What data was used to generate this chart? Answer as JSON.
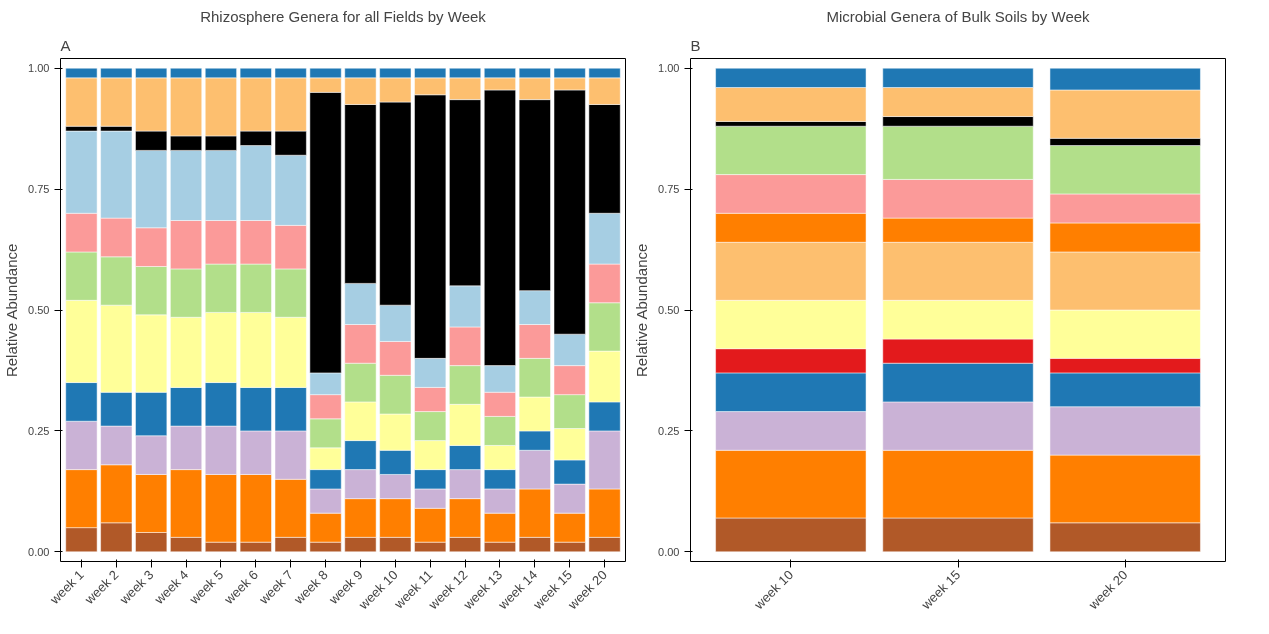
{
  "chart_data": [
    {
      "type": "bar",
      "stacked": true,
      "title": "Rhizosphere Genera for all Fields by Week",
      "ylabel": "Relative Abundance",
      "annotations": [
        "A"
      ],
      "categories": [
        "week 1",
        "week 2",
        "week 3",
        "week 4",
        "week 5",
        "week 6",
        "week 7",
        "week 8",
        "week 9",
        "week 10",
        "week 11",
        "week 12",
        "week 13",
        "week 14",
        "week 15",
        "week 20"
      ],
      "series": [
        {
          "color": "#b15928",
          "values": [
            0.05,
            0.06,
            0.04,
            0.03,
            0.02,
            0.02,
            0.03,
            0.02,
            0.03,
            0.03,
            0.02,
            0.03,
            0.02,
            0.03,
            0.02,
            0.03
          ]
        },
        {
          "color": "#ff7f00",
          "values": [
            0.12,
            0.12,
            0.12,
            0.14,
            0.14,
            0.14,
            0.12,
            0.06,
            0.08,
            0.08,
            0.07,
            0.08,
            0.06,
            0.1,
            0.06,
            0.1
          ]
        },
        {
          "color": "#cab2d6",
          "values": [
            0.1,
            0.08,
            0.08,
            0.09,
            0.1,
            0.09,
            0.1,
            0.05,
            0.06,
            0.05,
            0.04,
            0.06,
            0.05,
            0.08,
            0.06,
            0.12
          ]
        },
        {
          "color": "#1f78b4",
          "values": [
            0.08,
            0.07,
            0.09,
            0.08,
            0.09,
            0.09,
            0.09,
            0.04,
            0.06,
            0.05,
            0.04,
            0.05,
            0.04,
            0.04,
            0.05,
            0.06
          ]
        },
        {
          "color": "#ffff99",
          "values": [
            0.17,
            0.18,
            0.16,
            0.145,
            0.145,
            0.155,
            0.145,
            0.045,
            0.08,
            0.075,
            0.06,
            0.085,
            0.05,
            0.07,
            0.065,
            0.105
          ]
        },
        {
          "color": "#b2df8a",
          "values": [
            0.1,
            0.1,
            0.1,
            0.1,
            0.1,
            0.1,
            0.1,
            0.06,
            0.08,
            0.08,
            0.06,
            0.08,
            0.06,
            0.08,
            0.07,
            0.1
          ]
        },
        {
          "color": "#fb9a99",
          "values": [
            0.08,
            0.08,
            0.08,
            0.1,
            0.09,
            0.09,
            0.09,
            0.05,
            0.08,
            0.07,
            0.05,
            0.08,
            0.05,
            0.07,
            0.06,
            0.08
          ]
        },
        {
          "color": "#a6cee3",
          "values": [
            0.17,
            0.18,
            0.16,
            0.145,
            0.145,
            0.155,
            0.145,
            0.045,
            0.085,
            0.075,
            0.06,
            0.085,
            0.055,
            0.07,
            0.065,
            0.105
          ]
        },
        {
          "color": "#000000",
          "values": [
            0.01,
            0.01,
            0.04,
            0.03,
            0.03,
            0.03,
            0.05,
            0.58,
            0.37,
            0.42,
            0.545,
            0.385,
            0.57,
            0.395,
            0.505,
            0.225
          ]
        },
        {
          "color": "#fdbf6f",
          "values": [
            0.1,
            0.1,
            0.11,
            0.12,
            0.12,
            0.11,
            0.11,
            0.03,
            0.055,
            0.05,
            0.035,
            0.045,
            0.025,
            0.045,
            0.025,
            0.055
          ]
        },
        {
          "color": "#1f78b4",
          "values": [
            0.02,
            0.02,
            0.02,
            0.02,
            0.02,
            0.02,
            0.02,
            0.02,
            0.02,
            0.02,
            0.02,
            0.02,
            0.02,
            0.02,
            0.02,
            0.02
          ]
        }
      ],
      "ylim": [
        -0.02,
        1.02
      ],
      "yticks": [
        {
          "value": 0,
          "label": "0.00"
        },
        {
          "value": 0.25,
          "label": "0.25"
        },
        {
          "value": 0.5,
          "label": "0.50"
        },
        {
          "value": 0.75,
          "label": "0.75"
        },
        {
          "value": 1,
          "label": "1.00"
        }
      ],
      "grid": false
    },
    {
      "type": "bar",
      "stacked": true,
      "title": "Microbial Genera of Bulk Soils by Week",
      "ylabel": "Relative Abundance",
      "annotations": [
        "B"
      ],
      "categories": [
        "week 10",
        "week 15",
        "week 20"
      ],
      "series": [
        {
          "color": "#b15928",
          "values": [
            0.07,
            0.07,
            0.06
          ]
        },
        {
          "color": "#ff7f00",
          "values": [
            0.14,
            0.14,
            0.14
          ]
        },
        {
          "color": "#cab2d6",
          "values": [
            0.08,
            0.1,
            0.1
          ]
        },
        {
          "color": "#1f78b4",
          "values": [
            0.08,
            0.08,
            0.07
          ]
        },
        {
          "color": "#e31a1c",
          "values": [
            0.05,
            0.05,
            0.03
          ]
        },
        {
          "color": "#ffff99",
          "values": [
            0.1,
            0.08,
            0.1
          ]
        },
        {
          "color": "#fdbf6f",
          "values": [
            0.12,
            0.12,
            0.12
          ]
        },
        {
          "color": "#ff7f00",
          "values": [
            0.06,
            0.05,
            0.06
          ]
        },
        {
          "color": "#fb9a99",
          "values": [
            0.08,
            0.08,
            0.06
          ]
        },
        {
          "color": "#b2df8a",
          "values": [
            0.1,
            0.11,
            0.1
          ]
        },
        {
          "color": "#000000",
          "values": [
            0.01,
            0.02,
            0.015
          ]
        },
        {
          "color": "#fdbf6f",
          "values": [
            0.07,
            0.06,
            0.1
          ]
        },
        {
          "color": "#1f78b4",
          "values": [
            0.04,
            0.04,
            0.045
          ]
        }
      ],
      "ylim": [
        -0.02,
        1.02
      ],
      "yticks": [
        {
          "value": 0,
          "label": "0.00"
        },
        {
          "value": 0.25,
          "label": "0.25"
        },
        {
          "value": 0.5,
          "label": "0.50"
        },
        {
          "value": 0.75,
          "label": "0.75"
        },
        {
          "value": 1,
          "label": "1.00"
        }
      ],
      "grid": false
    }
  ]
}
